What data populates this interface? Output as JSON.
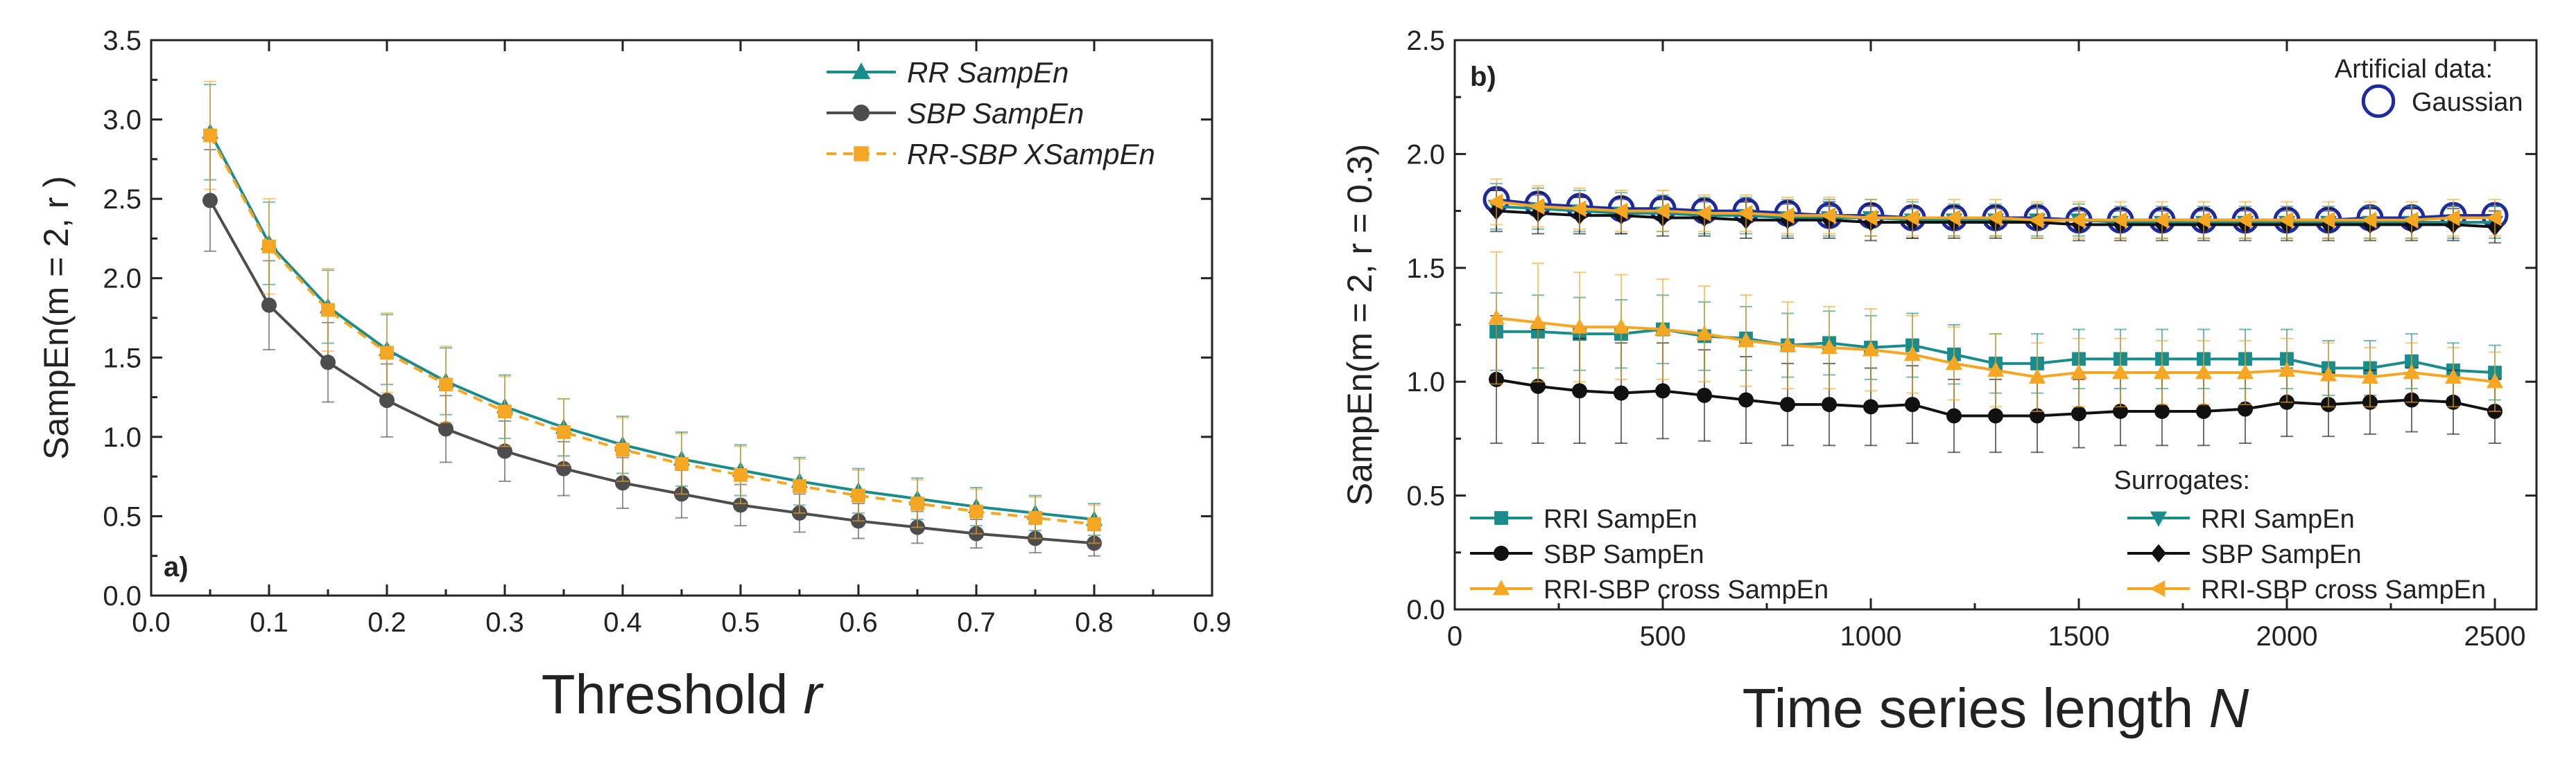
{
  "chart_data": [
    {
      "type": "line",
      "panel_label": "a)",
      "xlabel": "Threshold",
      "xlabel_var": "r",
      "ylabel": "SampEn(m = 2, r )",
      "xlim": [
        0.0,
        0.9
      ],
      "ylim": [
        0.0,
        3.5
      ],
      "xticks": [
        "0.0",
        "0.1",
        "0.2",
        "0.3",
        "0.4",
        "0.5",
        "0.6",
        "0.7",
        "0.8",
        "0.9"
      ],
      "yticks": [
        "0.0",
        "0.5",
        "1.0",
        "1.5",
        "2.0",
        "2.5",
        "3.0",
        "3.5"
      ],
      "grid": false,
      "legend_position": "top-right",
      "x": [
        0.05,
        0.1,
        0.15,
        0.2,
        0.25,
        0.3,
        0.35,
        0.4,
        0.45,
        0.5,
        0.55,
        0.6,
        0.65,
        0.7,
        0.75,
        0.8
      ],
      "series": [
        {
          "name": "RR SampEn",
          "color": "#1a8c8c",
          "marker": "triangle",
          "dashed": false,
          "values": [
            2.92,
            2.22,
            1.82,
            1.55,
            1.35,
            1.19,
            1.06,
            0.95,
            0.86,
            0.79,
            0.72,
            0.66,
            0.61,
            0.56,
            0.52,
            0.48
          ],
          "errors": [
            0.3,
            0.26,
            0.23,
            0.22,
            0.21,
            0.2,
            0.18,
            0.18,
            0.17,
            0.16,
            0.15,
            0.14,
            0.13,
            0.12,
            0.11,
            0.1
          ]
        },
        {
          "name": "SBP SampEn",
          "color": "#4d4d4d",
          "marker": "circle",
          "dashed": false,
          "values": [
            2.49,
            1.83,
            1.47,
            1.23,
            1.05,
            0.91,
            0.8,
            0.71,
            0.64,
            0.57,
            0.52,
            0.47,
            0.43,
            0.39,
            0.36,
            0.33
          ],
          "errors": [
            0.32,
            0.28,
            0.25,
            0.23,
            0.21,
            0.19,
            0.17,
            0.16,
            0.15,
            0.13,
            0.12,
            0.11,
            0.1,
            0.09,
            0.09,
            0.08
          ]
        },
        {
          "name": "RR-SBP XSampEn",
          "color": "#f5a623",
          "marker": "square",
          "dashed": true,
          "values": [
            2.9,
            2.2,
            1.8,
            1.53,
            1.33,
            1.16,
            1.03,
            0.92,
            0.83,
            0.76,
            0.69,
            0.63,
            0.58,
            0.53,
            0.49,
            0.45
          ],
          "errors": [
            0.34,
            0.3,
            0.26,
            0.25,
            0.24,
            0.22,
            0.21,
            0.2,
            0.19,
            0.18,
            0.17,
            0.16,
            0.15,
            0.14,
            0.13,
            0.12
          ]
        }
      ]
    },
    {
      "type": "line",
      "panel_label": "b)",
      "xlabel": "Time series length",
      "xlabel_var": "N",
      "ylabel": "SampEn(m = 2, r = 0.3)",
      "xlim": [
        0,
        2600
      ],
      "ylim": [
        0.0,
        2.5
      ],
      "xticks": [
        "0",
        "500",
        "1000",
        "1500",
        "2000",
        "2500"
      ],
      "yticks": [
        "0.0",
        "0.5",
        "1.0",
        "1.5",
        "2.0",
        "2.5"
      ],
      "grid": false,
      "x": [
        100,
        200,
        300,
        400,
        500,
        600,
        700,
        800,
        900,
        1000,
        1100,
        1200,
        1300,
        1400,
        1500,
        1600,
        1700,
        1800,
        1900,
        2000,
        2100,
        2200,
        2300,
        2400,
        2500
      ],
      "legend_top": {
        "title": "Artificial data:",
        "entries": [
          "Gaussian"
        ]
      },
      "legend_bottom": {
        "title": "Surrogates:",
        "left": [
          "RRI SampEn",
          "SBP SampEn",
          "RRI-SBP cross SampEn"
        ],
        "right": [
          "RRI SampEn",
          "SBP SampEn",
          "RRI-SBP cross SampEn"
        ]
      },
      "series": [
        {
          "name": "Gaussian",
          "color": "#1f2a9e",
          "marker": "open-circle",
          "values": [
            1.8,
            1.78,
            1.77,
            1.76,
            1.76,
            1.75,
            1.75,
            1.74,
            1.73,
            1.73,
            1.72,
            1.72,
            1.72,
            1.72,
            1.71,
            1.71,
            1.71,
            1.71,
            1.71,
            1.71,
            1.71,
            1.72,
            1.72,
            1.73,
            1.73
          ],
          "errors": [
            0.04,
            0.04,
            0.04,
            0.04,
            0.04,
            0.04,
            0.04,
            0.04,
            0.04,
            0.04,
            0.04,
            0.04,
            0.04,
            0.04,
            0.04,
            0.04,
            0.04,
            0.04,
            0.04,
            0.04,
            0.04,
            0.04,
            0.04,
            0.04,
            0.04
          ]
        },
        {
          "name": "RRI SampEn",
          "group": "surrogates",
          "color": "#1a8c8c",
          "marker": "down-triangle",
          "values": [
            1.77,
            1.76,
            1.75,
            1.74,
            1.74,
            1.73,
            1.73,
            1.72,
            1.72,
            1.72,
            1.71,
            1.71,
            1.71,
            1.71,
            1.71,
            1.7,
            1.7,
            1.7,
            1.7,
            1.7,
            1.7,
            1.7,
            1.7,
            1.7,
            1.7
          ],
          "errors": [
            0.1,
            0.09,
            0.09,
            0.09,
            0.08,
            0.08,
            0.08,
            0.08,
            0.08,
            0.08,
            0.08,
            0.07,
            0.07,
            0.07,
            0.07,
            0.07,
            0.07,
            0.07,
            0.07,
            0.07,
            0.07,
            0.07,
            0.07,
            0.07,
            0.07
          ]
        },
        {
          "name": "SBP SampEn",
          "group": "surrogates",
          "color": "#111111",
          "marker": "diamond",
          "values": [
            1.75,
            1.74,
            1.73,
            1.73,
            1.72,
            1.72,
            1.71,
            1.71,
            1.71,
            1.7,
            1.7,
            1.7,
            1.7,
            1.7,
            1.69,
            1.69,
            1.69,
            1.69,
            1.69,
            1.69,
            1.69,
            1.69,
            1.69,
            1.69,
            1.68
          ],
          "errors": [
            0.09,
            0.09,
            0.08,
            0.08,
            0.08,
            0.08,
            0.08,
            0.08,
            0.08,
            0.08,
            0.07,
            0.07,
            0.07,
            0.07,
            0.07,
            0.07,
            0.07,
            0.07,
            0.07,
            0.07,
            0.07,
            0.07,
            0.07,
            0.07,
            0.07
          ]
        },
        {
          "name": "RRI-SBP cross SampEn",
          "group": "surrogates",
          "color": "#f5a623",
          "marker": "left-triangle",
          "values": [
            1.79,
            1.77,
            1.76,
            1.75,
            1.75,
            1.74,
            1.74,
            1.73,
            1.73,
            1.72,
            1.72,
            1.72,
            1.72,
            1.71,
            1.71,
            1.71,
            1.71,
            1.71,
            1.71,
            1.71,
            1.71,
            1.71,
            1.71,
            1.72,
            1.72
          ],
          "errors": [
            0.1,
            0.09,
            0.09,
            0.09,
            0.09,
            0.08,
            0.08,
            0.08,
            0.08,
            0.08,
            0.08,
            0.08,
            0.08,
            0.08,
            0.08,
            0.08,
            0.08,
            0.08,
            0.08,
            0.08,
            0.08,
            0.08,
            0.08,
            0.08,
            0.08
          ]
        },
        {
          "name": "RRI SampEn",
          "group": "data",
          "color": "#1a8c8c",
          "marker": "square",
          "values": [
            1.22,
            1.22,
            1.21,
            1.21,
            1.23,
            1.2,
            1.19,
            1.16,
            1.17,
            1.15,
            1.16,
            1.12,
            1.08,
            1.08,
            1.1,
            1.1,
            1.1,
            1.1,
            1.1,
            1.1,
            1.06,
            1.06,
            1.09,
            1.05,
            1.04
          ],
          "errors": [
            0.17,
            0.16,
            0.16,
            0.15,
            0.15,
            0.15,
            0.14,
            0.14,
            0.14,
            0.14,
            0.14,
            0.13,
            0.13,
            0.13,
            0.13,
            0.13,
            0.13,
            0.13,
            0.13,
            0.13,
            0.12,
            0.12,
            0.12,
            0.12,
            0.12
          ]
        },
        {
          "name": "SBP SampEn",
          "group": "data",
          "color": "#111111",
          "marker": "circle",
          "values": [
            1.01,
            0.98,
            0.96,
            0.95,
            0.96,
            0.94,
            0.92,
            0.9,
            0.9,
            0.89,
            0.9,
            0.85,
            0.85,
            0.85,
            0.86,
            0.87,
            0.87,
            0.87,
            0.88,
            0.91,
            0.9,
            0.91,
            0.92,
            0.91,
            0.87
          ],
          "errors": [
            0.28,
            0.25,
            0.23,
            0.22,
            0.21,
            0.2,
            0.19,
            0.18,
            0.18,
            0.17,
            0.17,
            0.16,
            0.16,
            0.16,
            0.15,
            0.15,
            0.15,
            0.15,
            0.15,
            0.15,
            0.14,
            0.14,
            0.14,
            0.14,
            0.14
          ]
        },
        {
          "name": "RRI-SBP cross SampEn",
          "group": "data",
          "color": "#f5a623",
          "marker": "triangle",
          "values": [
            1.28,
            1.26,
            1.24,
            1.24,
            1.23,
            1.21,
            1.18,
            1.16,
            1.15,
            1.14,
            1.12,
            1.08,
            1.05,
            1.02,
            1.04,
            1.04,
            1.04,
            1.04,
            1.04,
            1.05,
            1.03,
            1.02,
            1.04,
            1.02,
            1.0
          ],
          "errors": [
            0.29,
            0.26,
            0.24,
            0.23,
            0.22,
            0.21,
            0.2,
            0.19,
            0.18,
            0.18,
            0.17,
            0.16,
            0.16,
            0.15,
            0.15,
            0.15,
            0.14,
            0.14,
            0.14,
            0.14,
            0.14,
            0.13,
            0.13,
            0.13,
            0.13
          ]
        }
      ]
    }
  ]
}
